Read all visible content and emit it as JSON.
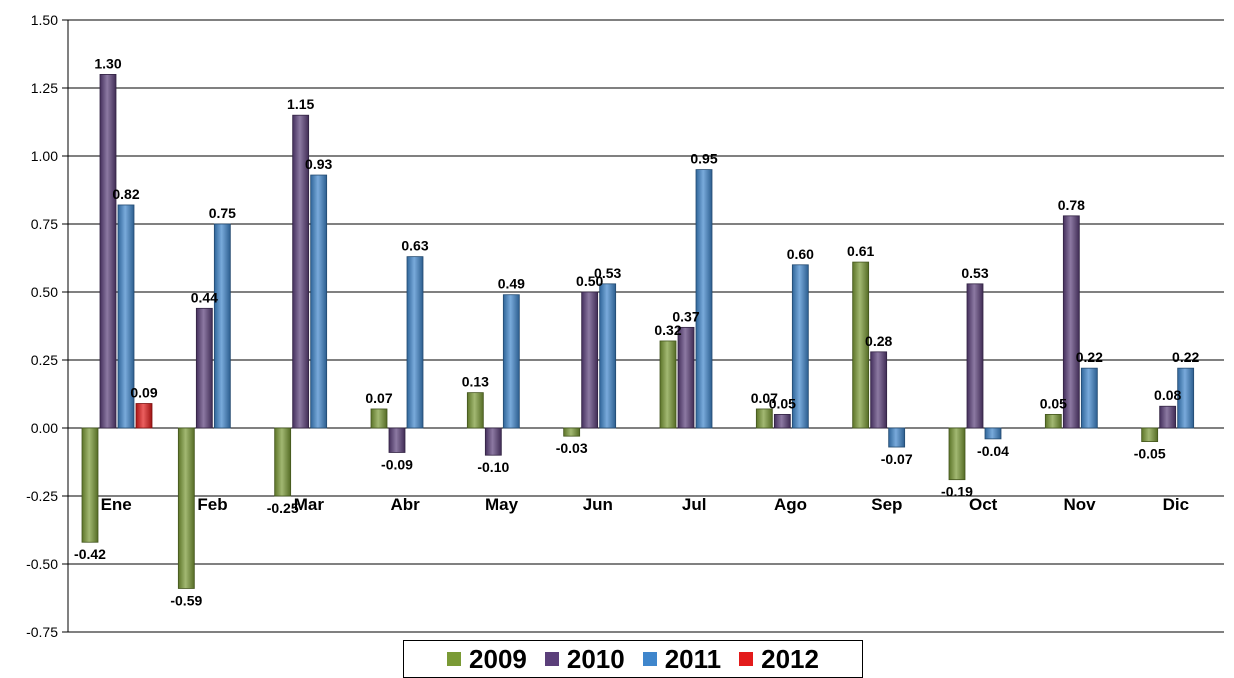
{
  "chart_data": {
    "type": "bar",
    "categories": [
      "Ene",
      "Feb",
      "Mar",
      "Abr",
      "May",
      "Jun",
      "Jul",
      "Ago",
      "Sep",
      "Oct",
      "Nov",
      "Dic"
    ],
    "series": [
      {
        "name": "2009",
        "color": "#7a9a35",
        "values": [
          -0.42,
          -0.59,
          -0.25,
          0.07,
          0.13,
          -0.03,
          0.32,
          0.07,
          0.61,
          -0.19,
          0.05,
          -0.05
        ]
      },
      {
        "name": "2010",
        "color": "#5b3f7a",
        "values": [
          1.3,
          0.44,
          1.15,
          -0.09,
          -0.1,
          0.5,
          0.37,
          0.05,
          0.28,
          0.53,
          0.78,
          0.08
        ]
      },
      {
        "name": "2011",
        "color": "#3f86cc",
        "values": [
          0.82,
          0.75,
          0.93,
          0.63,
          0.49,
          0.53,
          0.95,
          0.6,
          -0.07,
          -0.04,
          0.22,
          0.22
        ]
      },
      {
        "name": "2012",
        "color": "#e31b1b",
        "values": [
          0.09,
          null,
          null,
          null,
          null,
          null,
          null,
          null,
          null,
          null,
          null,
          null
        ]
      }
    ],
    "yticks": [
      "1.50",
      "1.25",
      "1.00",
      "0.75",
      "0.50",
      "0.25",
      "0.00",
      "-0.25",
      "-0.50",
      "-0.75"
    ],
    "ylim": [
      -0.75,
      1.5
    ],
    "grid": true,
    "legend_position": "bottom"
  }
}
